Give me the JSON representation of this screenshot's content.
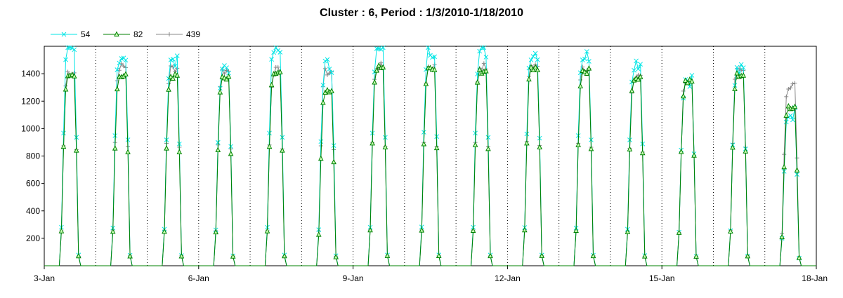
{
  "chart_data": {
    "type": "line",
    "title": "Cluster : 6, Period : 1/3/2010-1/18/2010",
    "x_axis": {
      "type": "date",
      "range": [
        "2010-01-03",
        "2010-01-18"
      ],
      "tick_labels": [
        "3-Jan",
        "6-Jan",
        "9-Jan",
        "12-Jan",
        "15-Jan",
        "18-Jan"
      ],
      "tick_dates": [
        "2010-01-03",
        "2010-01-06",
        "2010-01-09",
        "2010-01-12",
        "2010-01-15",
        "2010-01-18"
      ],
      "minor_gridlines": "daily, dotted"
    },
    "y_axis": {
      "range": [
        0,
        1600
      ],
      "tick_labels": [
        "200",
        "400",
        "600",
        "800",
        "1000",
        "1200",
        "1400"
      ],
      "tick_values": [
        200,
        400,
        600,
        800,
        1000,
        1200,
        1400
      ]
    },
    "legend": {
      "position": "top-left"
    },
    "series": [
      {
        "name": "54",
        "color": "#00e5e5",
        "marker": "x",
        "daily_peaks": [
          1560,
          1530,
          1480,
          1450,
          1560,
          1460,
          1560,
          1570,
          1560,
          1550,
          1530,
          1480,
          1360,
          1420,
          1110
        ]
      },
      {
        "name": "82",
        "color": "#008000",
        "marker": "triangle",
        "daily_peaks": [
          1400,
          1380,
          1380,
          1360,
          1400,
          1260,
          1440,
          1430,
          1420,
          1440,
          1420,
          1370,
          1340,
          1390,
          1160
        ]
      },
      {
        "name": "439",
        "color": "#888888",
        "marker": "plus",
        "daily_peaks": [
          1410,
          1450,
          1440,
          1420,
          1420,
          1410,
          1450,
          1450,
          1450,
          1460,
          1440,
          1380,
          1340,
          1440,
          1310
        ]
      }
    ],
    "daily_profile_note": "irradiance near 0 overnight; each day rises from roughly 08:00 to about 12:00, stays near peak, falls to 0 around 16:00"
  }
}
